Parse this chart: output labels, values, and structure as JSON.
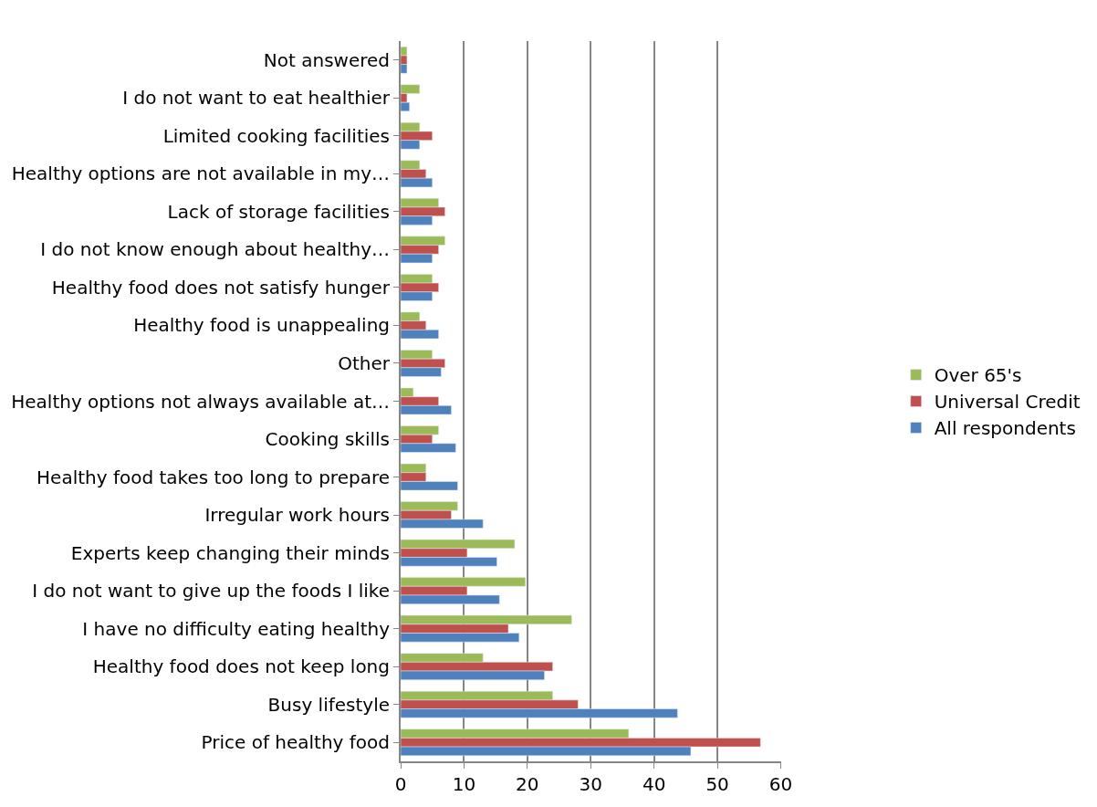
{
  "chart_data": {
    "type": "bar",
    "orientation": "horizontal",
    "categories": [
      "Not answered",
      "I do not want to eat healthier",
      "Limited cooking facilities",
      "Healthy options are not available in my…",
      "Lack of storage facilities",
      "I do not know enough about healthy…",
      "Healthy food does not satisfy hunger",
      "Healthy food is unappealing",
      "Other",
      "Healthy options not always available at…",
      "Cooking skills",
      "Healthy food takes too long to prepare",
      "Irregular work hours",
      "Experts keep changing their minds",
      "I do not want to give up the foods I like",
      "I have no difficulty eating healthy",
      "Healthy food does not keep long",
      "Busy lifestyle",
      "Price of healthy food"
    ],
    "series": [
      {
        "name": "Over 65's",
        "color": "#9bbb59",
        "values": [
          1,
          3,
          3,
          3,
          6,
          7,
          5,
          3,
          5,
          2,
          6,
          4,
          9,
          18,
          19.7,
          27,
          13,
          24,
          36
        ]
      },
      {
        "name": "Universal Credit",
        "color": "#c0504d",
        "values": [
          1,
          1,
          5,
          4,
          7,
          6,
          6,
          4,
          7,
          6,
          5,
          4,
          8,
          10.5,
          10.5,
          17,
          24,
          28,
          56.8
        ]
      },
      {
        "name": "All respondents",
        "color": "#4f81bd",
        "values": [
          1,
          1.4,
          3,
          5,
          5,
          5,
          5,
          6,
          6.4,
          8,
          8.7,
          9,
          13,
          15.2,
          15.6,
          18.7,
          22.7,
          43.7,
          45.8
        ]
      }
    ],
    "xlim": [
      0,
      60
    ],
    "xticks": [
      0,
      10,
      20,
      30,
      40,
      50,
      60
    ],
    "grid": "x",
    "legend": "right"
  }
}
